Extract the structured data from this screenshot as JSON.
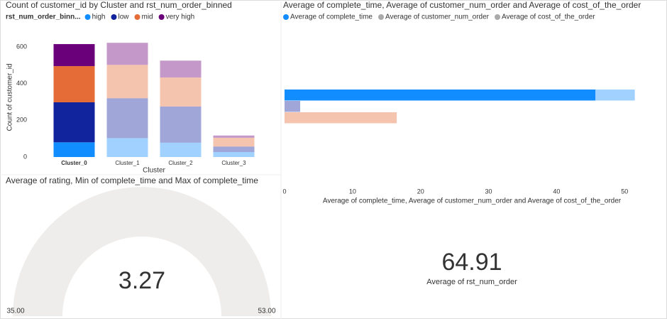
{
  "chart_data": [
    {
      "type": "stacked_bar",
      "title": "Count of customer_id by Cluster and rst_num_order_binned",
      "legend_title": "rst_num_order_binn...",
      "categories": [
        "Cluster_0",
        "Cluster_1",
        "Cluster_2",
        "Cluster_3"
      ],
      "highlight": "Cluster_0",
      "series": [
        {
          "name": "high",
          "color": "#118DFF",
          "values": [
            80,
            103,
            78,
            27
          ]
        },
        {
          "name": "low",
          "color": "#12239E",
          "values": [
            218,
            217,
            197,
            30
          ]
        },
        {
          "name": "mid",
          "color": "#E66C37",
          "values": [
            197,
            182,
            158,
            48
          ]
        },
        {
          "name": "very high",
          "color": "#6B007B",
          "values": [
            120,
            120,
            92,
            12
          ]
        }
      ],
      "ylim": [
        0,
        650
      ],
      "yticks": [
        0,
        200,
        400,
        600
      ],
      "xlabel": "Cluster",
      "ylabel": "Count of customer_id"
    },
    {
      "type": "hbar",
      "title": "Average of complete_time, Average of customer_num_order and Average of cost_of_the_order",
      "series": [
        {
          "name": "Average of complete_time",
          "color": "#118DFF",
          "values": [
            51.5
          ],
          "highlight_values": [
            45.7
          ]
        },
        {
          "name": "Average of customer_num_order",
          "color": "#12239E",
          "values": [
            2.3
          ],
          "highlight_values": [
            null
          ]
        },
        {
          "name": "Average of cost_of_the_order",
          "color": "#E66C37",
          "values": [
            16.5
          ],
          "highlight_values": [
            null
          ]
        }
      ],
      "xlim": [
        0,
        53
      ],
      "xticks": [
        0,
        10,
        20,
        30,
        40,
        50
      ],
      "xlabel": "Average of complete_time, Average of customer_num_order and Average of cost_of_the_order"
    },
    {
      "type": "gauge",
      "title": "Average of rating, Min of complete_time and Max of complete_time",
      "value": 3.27,
      "min": {
        "value": 35,
        "label": "35.00"
      },
      "max": {
        "value": 53,
        "label": "53.00"
      }
    },
    {
      "type": "card",
      "value": 64.91,
      "label": "Average of rst_num_order"
    }
  ]
}
